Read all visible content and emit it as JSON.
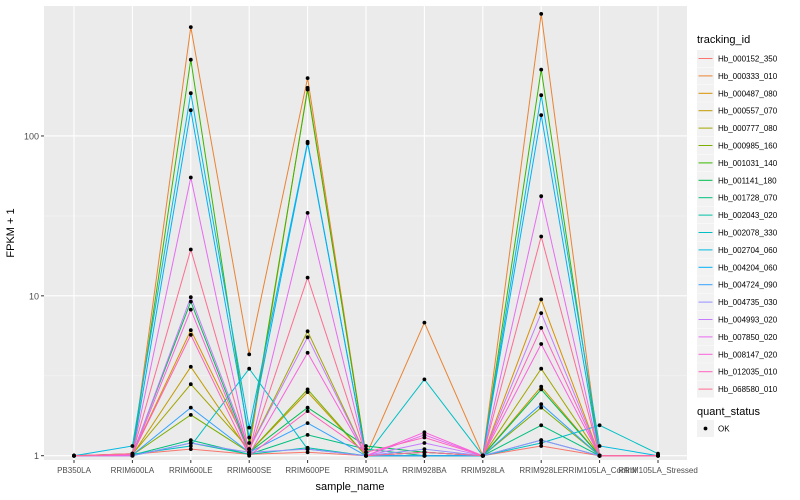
{
  "chart_data": {
    "type": "line",
    "xlabel": "sample_name",
    "ylabel": "FPKM + 1",
    "y_scale": "log10",
    "ylim": [
      0.94,
      650
    ],
    "y_ticks": [
      1,
      10,
      100
    ],
    "y_tick_labels": [
      "1",
      "10",
      "100"
    ],
    "grid": true,
    "legend_position": "right",
    "categories": [
      "PB350LA",
      "RRIM600LA",
      "RRIM600LE",
      "RRIM600SE",
      "RRIM600PE",
      "RRIM901LA",
      "RRIM928BA",
      "RRIM928LA",
      "RRIM928LE",
      "RRIM105LA_Control",
      "RRIM105LA_Stressed"
    ],
    "legend": {
      "color_title": "tracking_id",
      "shape_title": "quant_status",
      "shape_items": [
        "OK"
      ]
    },
    "series": [
      {
        "name": "Hb_000152_350",
        "color": "#F8766D",
        "values": [
          1,
          1.02,
          1.1,
          1.02,
          1.05,
          1.0,
          1.05,
          1.0,
          1.15,
          1.0,
          1.0
        ]
      },
      {
        "name": "Hb_000333_010",
        "color": "#EA8331",
        "values": [
          1,
          1.03,
          480,
          4.3,
          230,
          1.0,
          6.8,
          1.0,
          580,
          1.0,
          1.0
        ]
      },
      {
        "name": "Hb_000487_080",
        "color": "#D89000",
        "values": [
          1,
          1.02,
          6.1,
          1.1,
          200,
          1.0,
          1.05,
          1.0,
          9.5,
          1.0,
          1.0
        ]
      },
      {
        "name": "Hb_000557_070",
        "color": "#C09B00",
        "values": [
          1,
          1.01,
          3.6,
          1.05,
          2.5,
          1.0,
          1.0,
          1.0,
          2.7,
          1.0,
          1.0
        ]
      },
      {
        "name": "Hb_000777_080",
        "color": "#A3A500",
        "values": [
          1,
          1.02,
          2.8,
          1.1,
          6.0,
          1.0,
          1.0,
          1.0,
          3.5,
          1.0,
          1.0
        ]
      },
      {
        "name": "Hb_000985_160",
        "color": "#7CAE00",
        "values": [
          1,
          1.01,
          1.8,
          1.05,
          2.6,
          1.0,
          1.0,
          1.0,
          2.0,
          1.0,
          1.0
        ]
      },
      {
        "name": "Hb_001031_140",
        "color": "#39B600",
        "values": [
          1,
          1.03,
          300,
          1.2,
          195,
          1.0,
          1.0,
          1.0,
          260,
          1.0,
          1.0
        ]
      },
      {
        "name": "Hb_001141_180",
        "color": "#00BB4E",
        "values": [
          1,
          1.02,
          9.2,
          1.05,
          2.0,
          1.15,
          1.05,
          1.0,
          2.6,
          1.0,
          1.0
        ]
      },
      {
        "name": "Hb_001728_070",
        "color": "#00BF7D",
        "values": [
          1,
          1.01,
          1.25,
          1.02,
          1.35,
          1.1,
          1.0,
          1.0,
          1.55,
          1.0,
          1.0
        ]
      },
      {
        "name": "Hb_002043_020",
        "color": "#00C1A3",
        "values": [
          1,
          1.0,
          1.2,
          1.02,
          1.12,
          1.0,
          1.0,
          1.0,
          1.25,
          1.0,
          1.0
        ]
      },
      {
        "name": "Hb_002078_330",
        "color": "#00BFC4",
        "values": [
          1,
          1.02,
          1.15,
          3.5,
          1.1,
          1.0,
          3.0,
          1.0,
          1.2,
          1.55,
          1.03
        ]
      },
      {
        "name": "Hb_002704_060",
        "color": "#00BAE0",
        "values": [
          1,
          1.15,
          185,
          1.5,
          92,
          1.0,
          1.05,
          1.0,
          180,
          1.15,
          1.0
        ]
      },
      {
        "name": "Hb_004204_060",
        "color": "#00B0F6",
        "values": [
          1,
          1.02,
          145,
          1.3,
          90,
          1.0,
          1.0,
          1.0,
          135,
          1.0,
          1.0
        ]
      },
      {
        "name": "Hb_004724_090",
        "color": "#35A2FF",
        "values": [
          1,
          1.01,
          2.0,
          1.05,
          1.6,
          1.0,
          1.0,
          1.0,
          2.1,
          1.0,
          1.0
        ]
      },
      {
        "name": "Hb_004735_030",
        "color": "#9590FF",
        "values": [
          1,
          1.0,
          1.2,
          1.05,
          1.1,
          1.0,
          1.1,
          1.0,
          1.25,
          1.0,
          1.0
        ]
      },
      {
        "name": "Hb_004993_020",
        "color": "#C77CFF",
        "values": [
          1,
          1.01,
          9.8,
          1.1,
          5.5,
          1.0,
          1.2,
          1.0,
          7.8,
          1.0,
          1.0
        ]
      },
      {
        "name": "Hb_007850_020",
        "color": "#E76BF3",
        "values": [
          1,
          1.02,
          55,
          1.05,
          33,
          1.0,
          1.35,
          1.0,
          42,
          1.0,
          1.0
        ]
      },
      {
        "name": "Hb_008147_020",
        "color": "#FA62DB",
        "values": [
          1,
          1.0,
          8.2,
          1.02,
          4.4,
          1.0,
          1.4,
          1.0,
          5.0,
          1.0,
          1.0
        ]
      },
      {
        "name": "Hb_012035_010",
        "color": "#FF62BC",
        "values": [
          1,
          1.02,
          5.7,
          1.0,
          1.9,
          1.05,
          1.3,
          1.0,
          6.3,
          1.0,
          1.0
        ]
      },
      {
        "name": "Hb_068580_010",
        "color": "#FF6C91",
        "values": [
          1,
          1.03,
          19.5,
          1.05,
          13,
          1.0,
          1.05,
          1.0,
          23.5,
          1.0,
          1.0
        ]
      }
    ]
  }
}
